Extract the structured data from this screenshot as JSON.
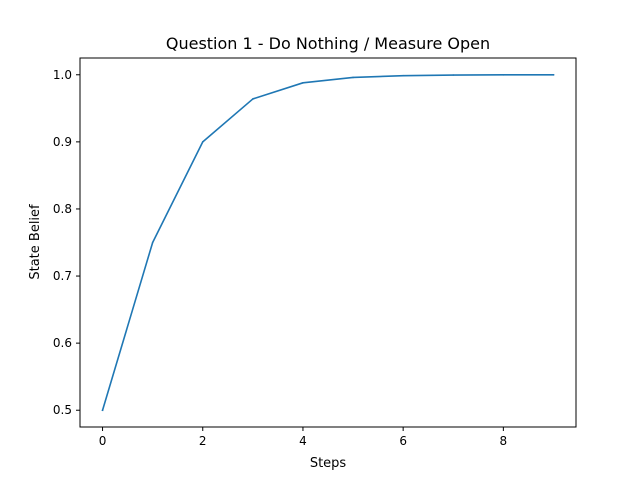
{
  "chart_data": {
    "type": "line",
    "title": "Question 1 - Do Nothing / Measure Open",
    "xlabel": "Steps",
    "ylabel": "State Belief",
    "x": [
      0,
      1,
      2,
      3,
      4,
      5,
      6,
      7,
      8,
      9
    ],
    "series": [
      {
        "values": [
          0.5,
          0.75,
          0.9,
          0.964,
          0.988,
          0.996,
          0.9987,
          0.9996,
          0.9999,
          1.0
        ],
        "color": "#1f77b4"
      }
    ],
    "xlim": [
      -0.45,
      9.45
    ],
    "ylim": [
      0.475,
      1.025
    ],
    "xticks": [
      0,
      2,
      4,
      6,
      8
    ],
    "yticks": [
      0.5,
      0.6,
      0.7,
      0.8,
      0.9,
      1.0
    ],
    "xtick_labels": [
      "0",
      "2",
      "4",
      "6",
      "8"
    ],
    "ytick_labels": [
      "0.5",
      "0.6",
      "0.7",
      "0.8",
      "0.9",
      "1.0"
    ],
    "grid": false,
    "legend": "none"
  }
}
